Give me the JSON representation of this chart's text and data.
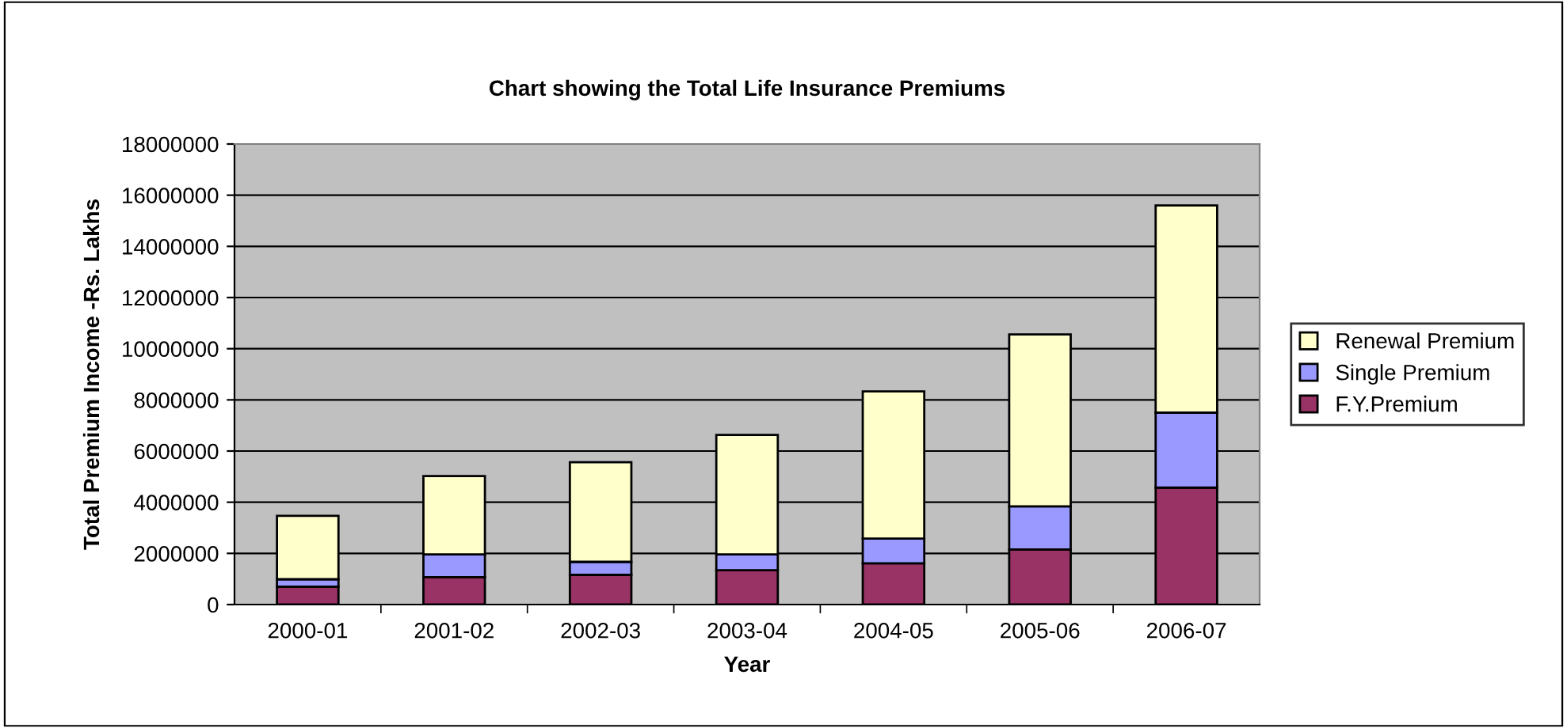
{
  "chart_data": {
    "type": "bar",
    "title": "Chart showing the Total Life Insurance Premiums",
    "xlabel": "Year",
    "ylabel": "Total Premium Income -Rs. Lakhs",
    "categories": [
      "2000-01",
      "2001-02",
      "2002-03",
      "2003-04",
      "2004-05",
      "2005-06",
      "2006-07"
    ],
    "stacked": true,
    "series": [
      {
        "name": "F.Y.Premium",
        "color": "#993366",
        "values": [
          700000,
          1070000,
          1160000,
          1340000,
          1610000,
          2150000,
          4570000
        ]
      },
      {
        "name": "Single Premium",
        "color": "#9999ff",
        "values": [
          290000,
          890000,
          510000,
          620000,
          970000,
          1690000,
          2930000
        ]
      },
      {
        "name": "Renewal Premium",
        "color": "#ffffcc",
        "values": [
          2480000,
          3060000,
          3890000,
          4670000,
          5750000,
          6720000,
          8100000
        ]
      }
    ],
    "ylim": [
      0,
      18000000
    ],
    "yticks": [
      0,
      2000000,
      4000000,
      6000000,
      8000000,
      10000000,
      12000000,
      14000000,
      16000000,
      18000000
    ],
    "grid": "y",
    "legend": "right"
  }
}
